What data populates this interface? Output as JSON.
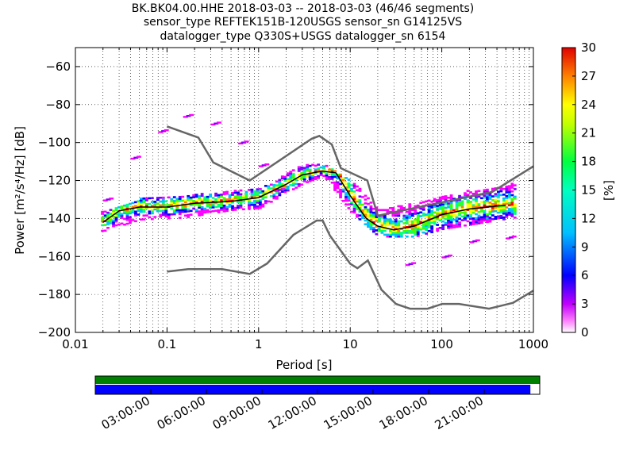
{
  "title_lines": [
    "BK.BK04.00.HHE   2018-03-03 -- 2018-03-03  (46/46 segments)",
    "sensor_type REFTEK151B-120USGS sensor_sn G14125VS",
    "datalogger_type Q330S+USGS datalogger_sn 6154"
  ],
  "chart_data": [
    {
      "type": "heatmap",
      "title": "BK.BK04.00.HHE   2018-03-03 -- 2018-03-03  (46/46 segments)",
      "xlabel": "Period [s]",
      "ylabel": "Power [m²/s⁴/Hz] [dB]",
      "xscale": "log",
      "xlim": [
        0.01,
        1000
      ],
      "ylim": [
        -200,
        -50
      ],
      "xtick_labels": [
        "0.01",
        "0.1",
        "1",
        "10",
        "100",
        "1000"
      ],
      "xtick_values": [
        0.01,
        0.1,
        1,
        10,
        100,
        1000
      ],
      "ytick_values": [
        -200,
        -180,
        -160,
        -140,
        -120,
        -100,
        -80,
        -60
      ],
      "ytick_labels": [
        "−200",
        "−180",
        "−160",
        "−140",
        "−120",
        "−100",
        "−80",
        "−60"
      ],
      "grid": "dotted",
      "mean_psd": {
        "period": [
          0.02,
          0.03,
          0.05,
          0.1,
          0.2,
          0.5,
          1,
          2,
          3,
          5,
          7,
          10,
          15,
          20,
          30,
          50,
          100,
          200,
          500
        ],
        "power": [
          -142,
          -136,
          -134,
          -134,
          -132,
          -131,
          -129,
          -122,
          -117,
          -115,
          -116,
          -128,
          -140,
          -144,
          -146,
          -144,
          -138,
          -135,
          -133
        ]
      },
      "new_high_noise_model": {
        "period": [
          0.1,
          0.22,
          0.32,
          0.8,
          3.8,
          4.6,
          6.3,
          7.9,
          15.4,
          20,
          354.8,
          1000
        ],
        "power": [
          -91.5,
          -97.4,
          -110.5,
          -120,
          -98,
          -96.5,
          -101,
          -113.5,
          -120,
          -138.5,
          -126,
          -112.5
        ]
      },
      "new_low_noise_model": {
        "period": [
          0.1,
          0.17,
          0.4,
          0.8,
          1.24,
          2.4,
          4.3,
          5,
          6,
          10,
          12,
          15.6,
          21.9,
          31.6,
          45,
          70,
          101,
          154,
          328,
          600,
          1000
        ],
        "power": [
          -168,
          -166.7,
          -166.7,
          -169.2,
          -163.7,
          -148.6,
          -141.1,
          -141.1,
          -149,
          -163.8,
          -166.2,
          -162.1,
          -177.5,
          -185,
          -187.5,
          -187.5,
          -185,
          -185,
          -187.5,
          -184.4,
          -178
        ]
      },
      "pdf_density": [
        {
          "period": 0.02,
          "power": [
            -147,
            -136
          ]
        },
        {
          "period": 0.05,
          "power": [
            -141,
            -130
          ]
        },
        {
          "period": 0.15,
          "power": [
            -140,
            -128
          ]
        },
        {
          "period": 0.5,
          "power": [
            -136,
            -126
          ]
        },
        {
          "period": 1,
          "power": [
            -135,
            -124
          ]
        },
        {
          "period": 3,
          "power": [
            -122,
            -112
          ]
        },
        {
          "period": 5,
          "power": [
            -118,
            -112
          ]
        },
        {
          "period": 10,
          "power": [
            -137,
            -120
          ]
        },
        {
          "period": 20,
          "power": [
            -150,
            -136
          ]
        },
        {
          "period": 50,
          "power": [
            -150,
            -132
          ]
        },
        {
          "period": 100,
          "power": [
            -146,
            -128
          ]
        },
        {
          "period": 600,
          "power": [
            -140,
            -122
          ]
        }
      ],
      "pdf_outliers": [
        {
          "period": 0.02,
          "power": -130
        },
        {
          "period": 0.04,
          "power": -108
        },
        {
          "period": 0.08,
          "power": -94
        },
        {
          "period": 0.15,
          "power": -86
        },
        {
          "period": 0.3,
          "power": -90
        },
        {
          "period": 0.6,
          "power": -100
        },
        {
          "period": 1.0,
          "power": -112
        },
        {
          "period": 1.5,
          "power": -125
        },
        {
          "period": 40,
          "power": -164
        },
        {
          "period": 100,
          "power": -160
        },
        {
          "period": 200,
          "power": -152
        },
        {
          "period": 500,
          "power": -150
        }
      ],
      "colorbar": {
        "label": "[%]",
        "range": [
          0,
          30
        ],
        "ticks": [
          "0",
          "3",
          "6",
          "9",
          "12",
          "15",
          "18",
          "21",
          "24",
          "27",
          "30"
        ]
      }
    },
    {
      "type": "timeline",
      "tick_labels": [
        "03:00:00",
        "06:00:00",
        "09:00:00",
        "12:00:00",
        "15:00:00",
        "18:00:00",
        "21:00:00"
      ],
      "coverage_fraction": 0.979,
      "colors": {
        "data": "#0000ff",
        "gap_free": "#008000",
        "empty": "#ffffff"
      }
    }
  ],
  "colors": {
    "noise_model": "#666666",
    "mean_line": "#000000",
    "colormap": [
      "#ffffff",
      "#ff00ff",
      "#8000ff",
      "#0000ff",
      "#00c0ff",
      "#00ff80",
      "#40ff00",
      "#ffff00",
      "#ff8000",
      "#ff0000",
      "#d00000"
    ]
  }
}
